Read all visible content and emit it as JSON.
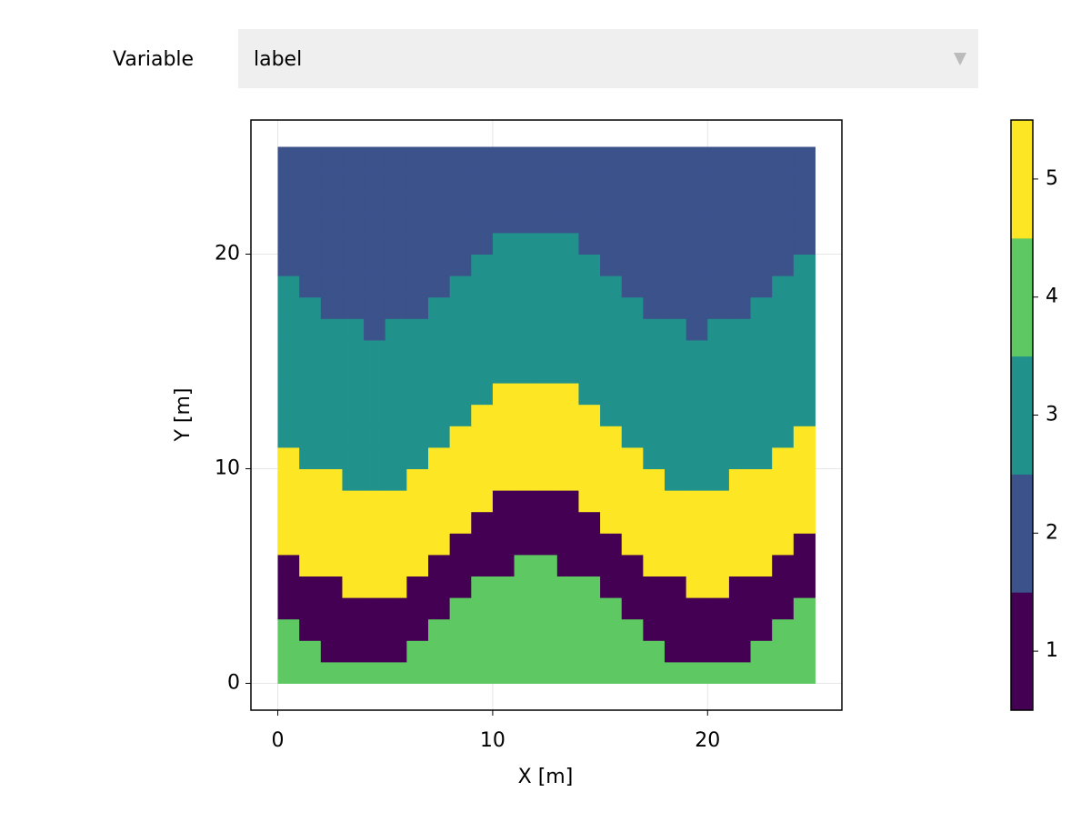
{
  "controls": {
    "label": "Variable",
    "selected": "label"
  },
  "chart_data": {
    "type": "heatmap",
    "xlabel": "X [m]",
    "ylabel": "Y [m]",
    "x": [
      0,
      1,
      2,
      3,
      4,
      5,
      6,
      7,
      8,
      9,
      10,
      11,
      12,
      13,
      14,
      15,
      16,
      17,
      18,
      19,
      20,
      21,
      22,
      23,
      24,
      25
    ],
    "y": [
      0,
      1,
      2,
      3,
      4,
      5,
      6,
      7,
      8,
      9,
      10,
      11,
      12,
      13,
      14,
      15,
      16,
      17,
      18,
      19,
      20,
      21,
      22,
      23,
      24,
      25
    ],
    "z": [
      [
        4,
        4,
        4,
        4,
        4,
        4,
        4,
        4,
        4,
        4,
        4,
        4,
        4,
        4,
        4,
        4,
        4,
        4,
        4,
        4,
        4,
        4,
        4,
        4,
        4
      ],
      [
        4,
        4,
        1,
        1,
        1,
        1,
        4,
        4,
        4,
        4,
        4,
        4,
        4,
        4,
        4,
        4,
        4,
        4,
        1,
        1,
        1,
        1,
        4,
        4,
        4
      ],
      [
        4,
        1,
        1,
        1,
        1,
        1,
        1,
        4,
        4,
        4,
        4,
        4,
        4,
        4,
        4,
        4,
        4,
        1,
        1,
        1,
        1,
        1,
        1,
        4,
        4
      ],
      [
        1,
        1,
        1,
        1,
        1,
        1,
        1,
        1,
        4,
        4,
        4,
        4,
        4,
        4,
        4,
        4,
        1,
        1,
        1,
        1,
        1,
        1,
        1,
        1,
        4
      ],
      [
        1,
        1,
        1,
        5,
        5,
        5,
        1,
        1,
        1,
        4,
        4,
        4,
        4,
        4,
        4,
        1,
        1,
        1,
        1,
        5,
        5,
        1,
        1,
        1,
        1
      ],
      [
        1,
        5,
        5,
        5,
        5,
        5,
        5,
        1,
        1,
        1,
        1,
        4,
        4,
        1,
        1,
        1,
        1,
        5,
        5,
        5,
        5,
        5,
        5,
        1,
        1
      ],
      [
        5,
        5,
        5,
        5,
        5,
        5,
        5,
        5,
        1,
        1,
        1,
        1,
        1,
        1,
        1,
        1,
        5,
        5,
        5,
        5,
        5,
        5,
        5,
        5,
        1
      ],
      [
        5,
        5,
        5,
        5,
        5,
        5,
        5,
        5,
        5,
        1,
        1,
        1,
        1,
        1,
        1,
        5,
        5,
        5,
        5,
        5,
        5,
        5,
        5,
        5,
        5
      ],
      [
        5,
        5,
        5,
        5,
        5,
        5,
        5,
        5,
        5,
        5,
        1,
        1,
        1,
        1,
        5,
        5,
        5,
        5,
        5,
        5,
        5,
        5,
        5,
        5,
        5
      ],
      [
        5,
        5,
        5,
        3,
        3,
        3,
        5,
        5,
        5,
        5,
        5,
        5,
        5,
        5,
        5,
        5,
        5,
        5,
        3,
        3,
        3,
        5,
        5,
        5,
        5
      ],
      [
        5,
        3,
        3,
        3,
        3,
        3,
        3,
        5,
        5,
        5,
        5,
        5,
        5,
        5,
        5,
        5,
        5,
        3,
        3,
        3,
        3,
        3,
        3,
        5,
        5
      ],
      [
        3,
        3,
        3,
        3,
        3,
        3,
        3,
        3,
        5,
        5,
        5,
        5,
        5,
        5,
        5,
        5,
        3,
        3,
        3,
        3,
        3,
        3,
        3,
        3,
        5
      ],
      [
        3,
        3,
        3,
        3,
        3,
        3,
        3,
        3,
        3,
        5,
        5,
        5,
        5,
        5,
        5,
        3,
        3,
        3,
        3,
        3,
        3,
        3,
        3,
        3,
        3
      ],
      [
        3,
        3,
        3,
        3,
        3,
        3,
        3,
        3,
        3,
        3,
        5,
        5,
        5,
        5,
        3,
        3,
        3,
        3,
        3,
        3,
        3,
        3,
        3,
        3,
        3
      ],
      [
        3,
        3,
        3,
        3,
        3,
        3,
        3,
        3,
        3,
        3,
        3,
        3,
        3,
        3,
        3,
        3,
        3,
        3,
        3,
        3,
        3,
        3,
        3,
        3,
        3
      ],
      [
        3,
        3,
        3,
        3,
        3,
        3,
        3,
        3,
        3,
        3,
        3,
        3,
        3,
        3,
        3,
        3,
        3,
        3,
        3,
        3,
        3,
        3,
        3,
        3,
        3
      ],
      [
        3,
        3,
        3,
        3,
        2,
        3,
        3,
        3,
        3,
        3,
        3,
        3,
        3,
        3,
        3,
        3,
        3,
        3,
        3,
        2,
        3,
        3,
        3,
        3,
        3
      ],
      [
        3,
        3,
        2,
        2,
        2,
        2,
        2,
        3,
        3,
        3,
        3,
        3,
        3,
        3,
        3,
        3,
        3,
        2,
        2,
        2,
        2,
        2,
        3,
        3,
        3
      ],
      [
        3,
        2,
        2,
        2,
        2,
        2,
        2,
        2,
        3,
        3,
        3,
        3,
        3,
        3,
        3,
        3,
        2,
        2,
        2,
        2,
        2,
        2,
        2,
        3,
        3
      ],
      [
        2,
        2,
        2,
        2,
        2,
        2,
        2,
        2,
        2,
        3,
        3,
        3,
        3,
        3,
        3,
        2,
        2,
        2,
        2,
        2,
        2,
        2,
        2,
        2,
        3
      ],
      [
        2,
        2,
        2,
        2,
        2,
        2,
        2,
        2,
        2,
        2,
        3,
        3,
        3,
        3,
        2,
        2,
        2,
        2,
        2,
        2,
        2,
        2,
        2,
        2,
        2
      ],
      [
        2,
        2,
        2,
        2,
        2,
        2,
        2,
        2,
        2,
        2,
        2,
        2,
        2,
        2,
        2,
        2,
        2,
        2,
        2,
        2,
        2,
        2,
        2,
        2,
        2
      ],
      [
        2,
        2,
        2,
        2,
        2,
        2,
        2,
        2,
        2,
        2,
        2,
        2,
        2,
        2,
        2,
        2,
        2,
        2,
        2,
        2,
        2,
        2,
        2,
        2,
        2
      ],
      [
        2,
        2,
        2,
        2,
        2,
        2,
        2,
        2,
        2,
        2,
        2,
        2,
        2,
        2,
        2,
        2,
        2,
        2,
        2,
        2,
        2,
        2,
        2,
        2,
        2
      ],
      [
        2,
        2,
        2,
        2,
        2,
        2,
        2,
        2,
        2,
        2,
        2,
        2,
        2,
        2,
        2,
        2,
        2,
        2,
        2,
        2,
        2,
        2,
        2,
        2,
        2
      ]
    ],
    "xlim": [
      -1.25,
      26.25
    ],
    "ylim": [
      -1.25,
      26.25
    ],
    "xticks": [
      0,
      10,
      20
    ],
    "yticks": [
      0,
      10,
      20
    ],
    "grid": true,
    "colorbar": {
      "lim": [
        0.5,
        5.5
      ],
      "ticks": [
        1,
        2,
        3,
        4,
        5
      ],
      "colors": [
        "#440154",
        "#3b528b",
        "#21918c",
        "#5ec962",
        "#fde725"
      ]
    }
  }
}
